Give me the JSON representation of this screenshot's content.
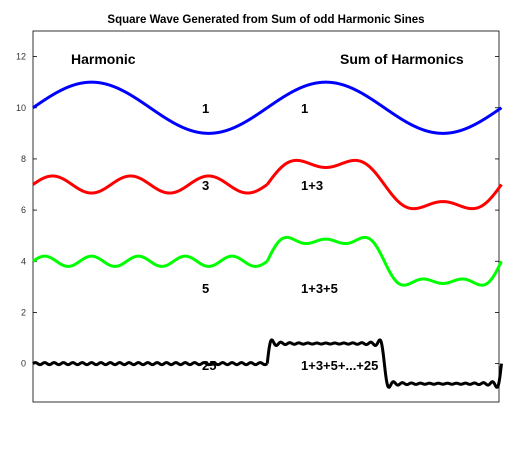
{
  "chart_data": {
    "type": "line",
    "title": "Square Wave Generated from Sum of odd Harmonic Sines",
    "xlabel": "",
    "ylabel": "",
    "ylim": [
      -1.5,
      13
    ],
    "xlim": [
      0,
      12.5
    ],
    "yticks": [
      0,
      2,
      4,
      6,
      8,
      10,
      12
    ],
    "grid": false,
    "legend": "none",
    "column_labels": {
      "left": "Harmonic",
      "right": "Sum of Harmonics"
    },
    "series": [
      {
        "group": "harmonic",
        "label": "1",
        "harmonics": [
          1
        ],
        "offset": 10,
        "x_range": [
          0,
          6.2832
        ],
        "color": "#0000ff"
      },
      {
        "group": "harmonic",
        "label": "3",
        "harmonics": [
          3
        ],
        "offset": 7,
        "x_range": [
          0,
          6.2832
        ],
        "color": "#ff0000"
      },
      {
        "group": "harmonic",
        "label": "5",
        "harmonics": [
          5
        ],
        "offset": 4,
        "x_range": [
          0,
          6.2832
        ],
        "color": "#00ff00"
      },
      {
        "group": "harmonic",
        "label": "25",
        "harmonics": [
          25
        ],
        "offset": 0,
        "x_range": [
          0,
          6.2832
        ],
        "color": "#000000"
      },
      {
        "group": "sum",
        "label": "1",
        "harmonics": [
          1
        ],
        "offset": 10,
        "x_range": [
          6.2832,
          12.5664
        ],
        "color": "#0000ff"
      },
      {
        "group": "sum",
        "label": "1+3",
        "harmonics": [
          1,
          3
        ],
        "offset": 7,
        "x_range": [
          6.2832,
          12.5664
        ],
        "color": "#ff0000"
      },
      {
        "group": "sum",
        "label": "1+3+5",
        "harmonics": [
          1,
          3,
          5
        ],
        "offset": 4,
        "x_range": [
          6.2832,
          12.5664
        ],
        "color": "#00ff00"
      },
      {
        "group": "sum",
        "label": "1+3+5+...+25",
        "harmonics": [
          1,
          3,
          5,
          7,
          9,
          11,
          13,
          15,
          17,
          19,
          21,
          23,
          25
        ],
        "offset": 0,
        "x_range": [
          6.2832,
          12.5664
        ],
        "color": "#000000"
      }
    ]
  }
}
